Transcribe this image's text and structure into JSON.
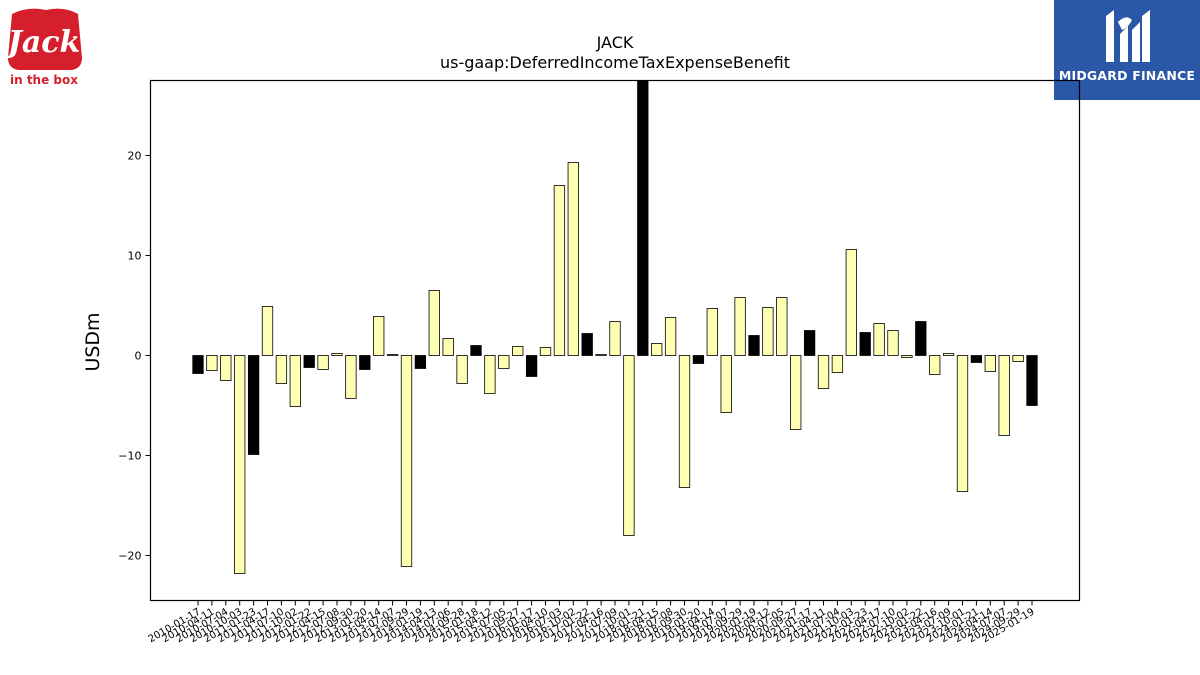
{
  "brand": {
    "left_logo_text": [
      "Jack",
      "in the box"
    ],
    "right_logo_text": "MIDGARD FINANCE",
    "left_logo_color": "#d61f2c",
    "right_logo_color": "#2a57a8"
  },
  "chart_data": {
    "type": "bar",
    "title": "JACK",
    "subtitle": "us-gaap:DeferredIncomeTaxExpenseBenefit",
    "ylabel": "USDm",
    "xlabel": "",
    "ylim": [
      -24.5,
      27.5
    ],
    "yticks": [
      -20,
      -10,
      0,
      10,
      20
    ],
    "grid": false,
    "colors": {
      "annual": "#000000",
      "quarterly": "#ffffb3",
      "edge": "#000000"
    },
    "categories": [
      "2010-01-17",
      "2010-04-11",
      "2010-07-04",
      "2010-10-03",
      "2011-01-23",
      "2011-04-17",
      "2011-07-10",
      "2011-10-02",
      "2012-01-22",
      "2012-04-15",
      "2012-07-08",
      "2012-09-30",
      "2013-01-20",
      "2013-04-14",
      "2013-07-07",
      "2013-09-29",
      "2014-01-19",
      "2014-04-13",
      "2014-07-06",
      "2014-09-28",
      "2015-01-18",
      "2015-04-12",
      "2015-07-05",
      "2015-09-27",
      "2016-01-17",
      "2016-04-10",
      "2016-07-03",
      "2016-10-02",
      "2017-01-22",
      "2017-04-16",
      "2017-07-09",
      "2017-10-01",
      "2018-01-21",
      "2018-04-15",
      "2018-07-08",
      "2018-09-30",
      "2019-01-20",
      "2019-04-14",
      "2019-07-07",
      "2019-09-29",
      "2020-01-19",
      "2020-04-12",
      "2020-07-05",
      "2020-09-27",
      "2021-01-17",
      "2021-04-11",
      "2021-07-04",
      "2021-10-03",
      "2022-01-23",
      "2022-04-17",
      "2022-07-10",
      "2022-10-02",
      "2023-01-22",
      "2023-04-16",
      "2023-07-09",
      "2023-10-01",
      "2024-01-21",
      "2024-04-14",
      "2024-07-07",
      "2024-09-29",
      "2025-01-19"
    ],
    "values": [
      -1.8,
      -1.5,
      -2.5,
      -21.8,
      -9.9,
      4.9,
      -2.8,
      -5.1,
      -1.2,
      -1.4,
      0.2,
      -4.3,
      -1.4,
      3.9,
      0.1,
      -21.1,
      -1.3,
      6.5,
      1.7,
      -2.8,
      1.0,
      -3.8,
      -1.3,
      0.9,
      -2.1,
      0.8,
      17.0,
      19.3,
      2.2,
      0.1,
      3.4,
      -18.0,
      27.5,
      1.2,
      3.8,
      -13.2,
      -0.8,
      4.7,
      -5.7,
      5.8,
      2.0,
      4.8,
      5.8,
      -7.4,
      2.5,
      -3.3,
      -1.7,
      10.6,
      2.3,
      3.2,
      2.5,
      -0.2,
      3.4,
      -1.9,
      0.2,
      -13.6,
      -0.7,
      -1.6,
      -8.0,
      -0.6,
      -5.0
    ],
    "period": [
      "annual",
      "quarterly",
      "quarterly",
      "quarterly",
      "annual",
      "quarterly",
      "quarterly",
      "quarterly",
      "annual",
      "quarterly",
      "quarterly",
      "quarterly",
      "annual",
      "quarterly",
      "quarterly",
      "quarterly",
      "annual",
      "quarterly",
      "quarterly",
      "quarterly",
      "annual",
      "quarterly",
      "quarterly",
      "quarterly",
      "annual",
      "quarterly",
      "quarterly",
      "quarterly",
      "annual",
      "quarterly",
      "quarterly",
      "quarterly",
      "annual",
      "quarterly",
      "quarterly",
      "quarterly",
      "annual",
      "quarterly",
      "quarterly",
      "quarterly",
      "annual",
      "quarterly",
      "quarterly",
      "quarterly",
      "annual",
      "quarterly",
      "quarterly",
      "quarterly",
      "annual",
      "quarterly",
      "quarterly",
      "quarterly",
      "annual",
      "quarterly",
      "quarterly",
      "quarterly",
      "annual",
      "quarterly",
      "quarterly",
      "quarterly",
      "annual"
    ]
  }
}
